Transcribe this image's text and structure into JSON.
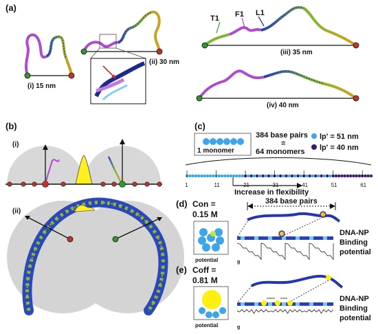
{
  "panel_a": {
    "label": "(a)",
    "sub": [
      {
        "label": "(i) 15 nm"
      },
      {
        "label": "(ii) 30 nm"
      },
      {
        "label": "(iii) 35 nm"
      },
      {
        "label": "(iv) 40 nm"
      }
    ],
    "strand_labels": [
      "T1",
      "F1",
      "L1"
    ]
  },
  "panel_b": {
    "label": "(b)",
    "sub_i": "(i)",
    "sub_ii": "(ii)"
  },
  "panel_c": {
    "label": "(c)",
    "monomer_label": "1 monomer",
    "bp_line1": "384 base pairs",
    "bp_eq": "=",
    "bp_line2": "64 monomers",
    "legend_light": "lp' = 51 nm",
    "legend_dark": "lp' = 40 nm",
    "ticks": [
      "1",
      "11",
      "21",
      "31",
      "41",
      "51",
      "61"
    ],
    "flex_label": "Increase in flexibility",
    "colors": {
      "light": "#3da5e8",
      "dark": "#3a1a6b"
    }
  },
  "panel_d": {
    "label": "(d)",
    "conc_line1": "Con =",
    "conc_line2": "0.15 M",
    "bp_label": "384 base pairs",
    "potential_label": "potential",
    "side_line1": "DNA-NP",
    "side_line2": "Binding",
    "side_line3": "potential"
  },
  "panel_e": {
    "label": "(e)",
    "conc_line1": "Coff =",
    "conc_line2": "0.81 M",
    "potential_label": "potential",
    "side_line1": "DNA-NP",
    "side_line2": "Binding",
    "side_line3": "potential"
  }
}
